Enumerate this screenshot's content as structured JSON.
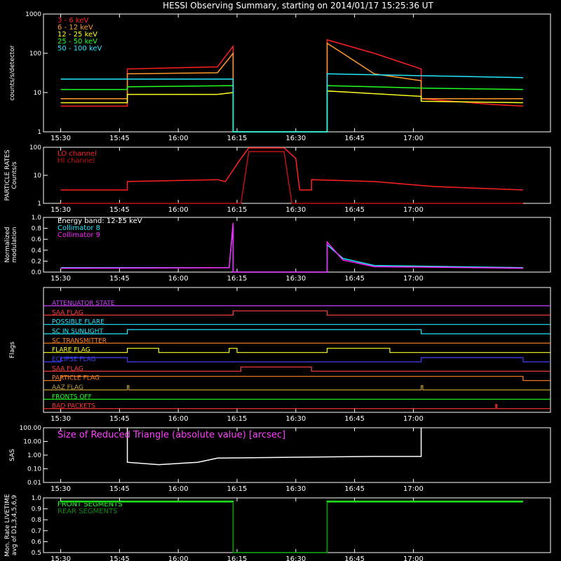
{
  "title": "HESSI Observing Summary, starting on 2014/01/17 15:25:36 UT",
  "time_ticks": [
    "15:30",
    "15:45",
    "16:00",
    "16:15",
    "16:30",
    "16:45",
    "17:00"
  ],
  "chart_data": [
    {
      "type": "line",
      "ylabel": "counts/s/detector",
      "yscale": "log",
      "ylim": [
        1,
        1000
      ],
      "yticks": [
        "1",
        "10",
        "100",
        "1000"
      ],
      "legend_placement": "top-left",
      "series": [
        {
          "name": "3 - 6 keV",
          "color": "#ff2020",
          "points": [
            [
              0,
              4.5
            ],
            [
              17,
              4.5
            ],
            [
              17,
              40
            ],
            [
              40,
              45
            ],
            [
              44,
              150
            ],
            [
              44,
              1
            ],
            [
              68,
              1
            ],
            [
              68,
              220
            ],
            [
              80,
              100
            ],
            [
              92,
              40
            ],
            [
              92,
              7
            ],
            [
              100,
              6
            ],
            [
              110,
              5
            ],
            [
              118,
              4.5
            ]
          ]
        },
        {
          "name": "6 - 12 keV",
          "color": "#ff9a2a",
          "points": [
            [
              0,
              7
            ],
            [
              17,
              7
            ],
            [
              17,
              30
            ],
            [
              40,
              32
            ],
            [
              44,
              100
            ],
            [
              44,
              1
            ],
            [
              68,
              1
            ],
            [
              68,
              180
            ],
            [
              72,
              100
            ],
            [
              80,
              30
            ],
            [
              92,
              20
            ],
            [
              92,
              7
            ],
            [
              118,
              7
            ]
          ]
        },
        {
          "name": "12 - 25 keV",
          "color": "#ffff20",
          "points": [
            [
              0,
              5.5
            ],
            [
              17,
              5.5
            ],
            [
              17,
              9
            ],
            [
              40,
              9
            ],
            [
              44,
              10
            ],
            [
              44,
              1
            ],
            [
              68,
              1
            ],
            [
              68,
              11
            ],
            [
              92,
              8
            ],
            [
              92,
              6
            ],
            [
              118,
              5.5
            ]
          ]
        },
        {
          "name": "25 - 50 keV",
          "color": "#20ff20",
          "points": [
            [
              0,
              12
            ],
            [
              17,
              12
            ],
            [
              17,
              14
            ],
            [
              44,
              15
            ],
            [
              44,
              1
            ],
            [
              68,
              1
            ],
            [
              68,
              15
            ],
            [
              92,
              13
            ],
            [
              118,
              12
            ]
          ]
        },
        {
          "name": "50 - 100 keV",
          "color": "#20e8ff",
          "points": [
            [
              0,
              22
            ],
            [
              44,
              22
            ],
            [
              44,
              1
            ],
            [
              68,
              1
            ],
            [
              68,
              30
            ],
            [
              118,
              24
            ]
          ]
        }
      ]
    },
    {
      "type": "line",
      "ylabel": "PARTICLE RATES Counts/s",
      "yscale": "log",
      "ylim": [
        1,
        100
      ],
      "yticks": [
        "1",
        "10",
        "100"
      ],
      "series": [
        {
          "name": "LO channel",
          "color": "#ff2020",
          "points": [
            [
              0,
              3
            ],
            [
              17,
              3
            ],
            [
              17,
              6
            ],
            [
              40,
              7
            ],
            [
              42,
              6
            ],
            [
              46,
              40
            ],
            [
              48,
              95
            ],
            [
              57,
              95
            ],
            [
              60,
              40
            ],
            [
              61,
              3
            ],
            [
              64,
              3
            ],
            [
              64,
              7
            ],
            [
              80,
              6
            ],
            [
              95,
              4
            ],
            [
              118,
              3
            ]
          ]
        },
        {
          "name": "HI channel",
          "color": "#c01010",
          "points": [
            [
              0,
              1
            ],
            [
              46,
              1
            ],
            [
              48,
              70
            ],
            [
              57,
              70
            ],
            [
              59,
              1
            ],
            [
              118,
              1
            ]
          ]
        }
      ]
    },
    {
      "type": "line",
      "ylabel": "Normalized modulation",
      "ylim": [
        0,
        1
      ],
      "yticks": [
        "0.0",
        "0.2",
        "0.4",
        "0.6",
        "0.8",
        "1.0"
      ],
      "annotation": "Energy band: 12-25 keV",
      "series": [
        {
          "name": "Collimator 8",
          "color": "#20e8ff",
          "points": [
            [
              0,
              0.08
            ],
            [
              43,
              0.08
            ],
            [
              44,
              0.88
            ],
            [
              44,
              0
            ],
            [
              68,
              0
            ],
            [
              68,
              0.5
            ],
            [
              72,
              0.25
            ],
            [
              80,
              0.12
            ],
            [
              118,
              0.08
            ]
          ]
        },
        {
          "name": "Collimator 9",
          "color": "#ff20ff",
          "points": [
            [
              0,
              0.07
            ],
            [
              43,
              0.08
            ],
            [
              44,
              0.9
            ],
            [
              44,
              0
            ],
            [
              68,
              0
            ],
            [
              68,
              0.55
            ],
            [
              72,
              0.22
            ],
            [
              80,
              0.1
            ],
            [
              118,
              0.07
            ]
          ]
        }
      ]
    },
    {
      "type": "flags",
      "ylabel": "Flags",
      "flags": [
        {
          "name": "ATTENUATOR STATE",
          "color": "#d040ff",
          "segments": []
        },
        {
          "name": "SAA FLAG",
          "color": "#ff4040",
          "segments": [
            [
              44,
              68
            ]
          ]
        },
        {
          "name": "POSSIBLE FLARE",
          "color": "#20e8ff",
          "segments": []
        },
        {
          "name": "SC IN SUNLIGHT",
          "color": "#20e8ff",
          "segments": [
            [
              17,
              92
            ]
          ]
        },
        {
          "name": "SC TRANSMITTER",
          "color": "#ff8020",
          "segments": []
        },
        {
          "name": "FLARE FLAG",
          "color": "#ffff20",
          "segments": [
            [
              17,
              25
            ],
            [
              43,
              45
            ],
            [
              68,
              84
            ]
          ]
        },
        {
          "name": "ECLIPSE FLAG",
          "color": "#4040ff",
          "segments": [
            [
              0,
              17
            ],
            [
              92,
              118
            ]
          ]
        },
        {
          "name": "SAA FLAG",
          "color": "#ff4040",
          "segments": [
            [
              46,
              64
            ]
          ]
        },
        {
          "name": "PARTICLE FLAG",
          "color": "#ff8020",
          "segments": [
            [
              0,
              118
            ]
          ]
        },
        {
          "name": "AAZ FLAG",
          "color": "#c0a030",
          "segments": [
            [
              17,
              17.4
            ],
            [
              92,
              92.4
            ]
          ]
        },
        {
          "name": "FRONTS OFF",
          "color": "#20ff20",
          "segments": []
        },
        {
          "name": "BAD PACKETS",
          "color": "#ff3030",
          "segments": [
            [
              111,
              111.3
            ]
          ]
        }
      ]
    },
    {
      "type": "line",
      "ylabel": "SAS",
      "yscale": "log",
      "ylim": [
        0.01,
        100
      ],
      "yticks": [
        "0.01",
        "0.10",
        "1.00",
        "10.00",
        "100.00"
      ],
      "annotation": "Size of Reduced Triangle (absolute value) [arcsec]",
      "series": [
        {
          "name": "",
          "color": "#ffffff",
          "points": [
            [
              17,
              100
            ],
            [
              17,
              0.3
            ],
            [
              25,
              0.2
            ],
            [
              35,
              0.3
            ],
            [
              40,
              0.6
            ],
            [
              60,
              0.7
            ],
            [
              80,
              0.8
            ],
            [
              92,
              0.8
            ],
            [
              92,
              100
            ]
          ]
        }
      ]
    },
    {
      "type": "line",
      "ylabel": "Mon. Rate LIVETIME avg of D1,3,4,5,6,9",
      "ylim": [
        0.5,
        1.0
      ],
      "yticks": [
        "0.5",
        "0.6",
        "0.7",
        "0.8",
        "0.9",
        "1.0"
      ],
      "series": [
        {
          "name": "FRONT SEGMENTS",
          "color": "#20ff20",
          "points": [
            [
              0,
              0.97
            ],
            [
              44,
              0.97
            ],
            [
              44,
              0.5
            ],
            [
              68,
              0.5
            ],
            [
              68,
              0.97
            ],
            [
              118,
              0.97
            ]
          ]
        },
        {
          "name": "REAR SEGMENTS",
          "color": "#108810",
          "points": [
            [
              0,
              0.96
            ],
            [
              44,
              0.96
            ],
            [
              44,
              0.5
            ],
            [
              68,
              0.5
            ],
            [
              68,
              0.96
            ],
            [
              118,
              0.96
            ]
          ]
        }
      ]
    }
  ]
}
